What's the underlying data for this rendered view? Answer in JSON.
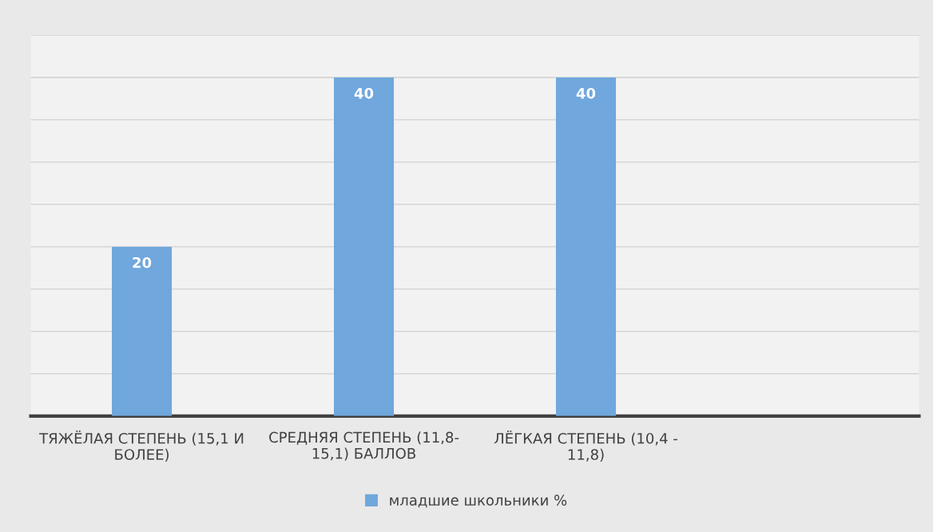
{
  "chart_data": {
    "type": "bar",
    "categories": [
      "ТЯЖЁЛАЯ СТЕПЕНЬ (15,1 И\nБОЛЕЕ)",
      "СРЕДНЯЯ СТЕПЕНЬ (11,8-\n15,1) БАЛЛОВ",
      "ЛЁГКАЯ СТЕПЕНЬ (10,4 -\n11,8)",
      null
    ],
    "series": [
      {
        "name": "младшие школьники %",
        "color": "#70a7dc",
        "values": [
          20,
          40,
          40,
          null
        ]
      }
    ],
    "ylim": [
      0,
      45
    ],
    "yticks": [
      {
        "value": 0,
        "label": null
      },
      {
        "value": 5,
        "label": null
      },
      {
        "value": 10,
        "label": null
      },
      {
        "value": 15,
        "label": null
      },
      {
        "value": 20,
        "label": null
      },
      {
        "value": 25,
        "label": null
      },
      {
        "value": 30,
        "label": null
      },
      {
        "value": 35,
        "label": null
      },
      {
        "value": 40,
        "label": null
      },
      {
        "value": 45,
        "label": null
      }
    ],
    "grid": "y",
    "legend": "bottom",
    "data_labels": true,
    "tick_labels": "x"
  }
}
